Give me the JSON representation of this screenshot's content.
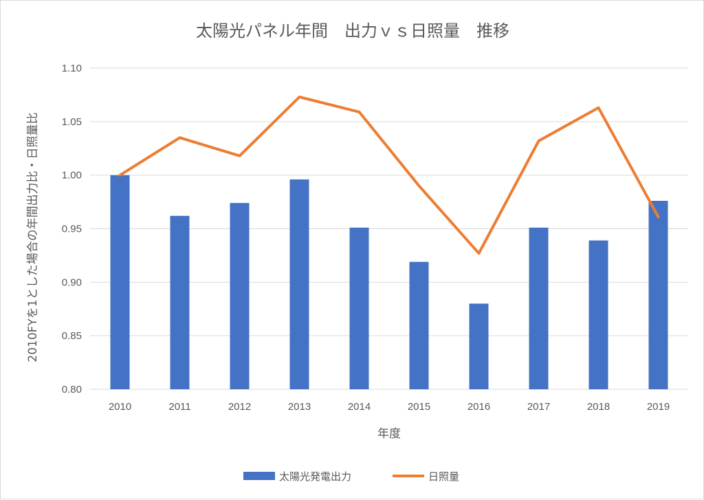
{
  "chart_data": {
    "type": "bar",
    "title": "太陽光パネル年間　出力ｖｓ日照量　推移",
    "xlabel": "年度",
    "ylabel": "2010FYを1とした場合の年間出力比・日照量比",
    "ylim": [
      0.8,
      1.1
    ],
    "yticks": [
      "0.80",
      "0.85",
      "0.90",
      "0.95",
      "1.00",
      "1.05",
      "1.10"
    ],
    "categories": [
      "2010",
      "2011",
      "2012",
      "2013",
      "2014",
      "2015",
      "2016",
      "2017",
      "2018",
      "2019"
    ],
    "grid": true,
    "legend_position": "bottom",
    "series": [
      {
        "name": "太陽光発電出力",
        "kind": "bar",
        "color": "#4472c4",
        "values": [
          1.0,
          0.962,
          0.974,
          0.996,
          0.951,
          0.919,
          0.88,
          0.951,
          0.939,
          0.976
        ]
      },
      {
        "name": "日照量",
        "kind": "line",
        "color": "#ed7d31",
        "values": [
          1.0,
          1.035,
          1.018,
          1.073,
          1.059,
          0.99,
          0.927,
          1.032,
          1.063,
          0.961
        ]
      }
    ]
  }
}
